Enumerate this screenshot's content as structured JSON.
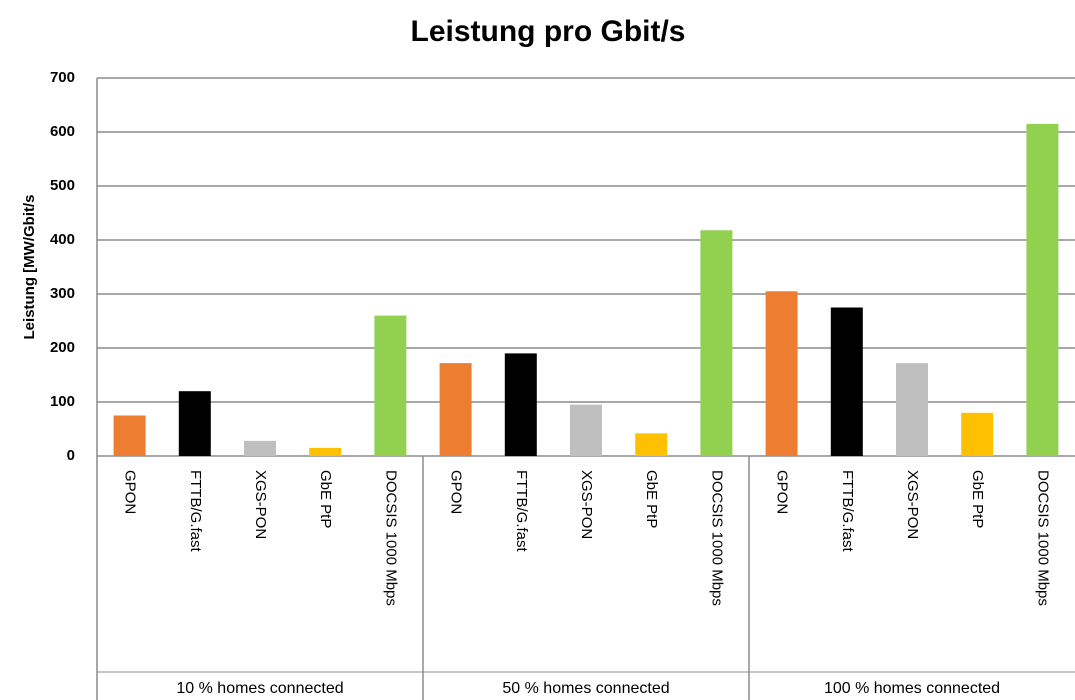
{
  "chart_data": {
    "type": "bar",
    "title": "Leistung pro Gbit/s",
    "y_label": "Leistung [MW/Gbit/s",
    "categories": [
      "10 % homes connected",
      "50 % homes connected",
      "100 % homes connected"
    ],
    "series": [
      {
        "name": "GPON",
        "color": "#ed7d31",
        "values": [
          75,
          172,
          305
        ]
      },
      {
        "name": "FTTB/G.fast",
        "color": "#000000",
        "values": [
          120,
          190,
          275
        ]
      },
      {
        "name": "XGS-PON",
        "color": "#bfbfbf",
        "values": [
          28,
          95,
          172
        ]
      },
      {
        "name": "GbE PtP",
        "color": "#ffc000",
        "values": [
          15,
          42,
          80
        ]
      },
      {
        "name": "DOCSIS 1000 Mbps",
        "color": "#92d050",
        "values": [
          260,
          418,
          615
        ]
      }
    ],
    "ylim": [
      0,
      700
    ],
    "yticks": [
      0,
      100,
      200,
      300,
      400,
      500,
      600,
      700
    ],
    "grid": true
  }
}
